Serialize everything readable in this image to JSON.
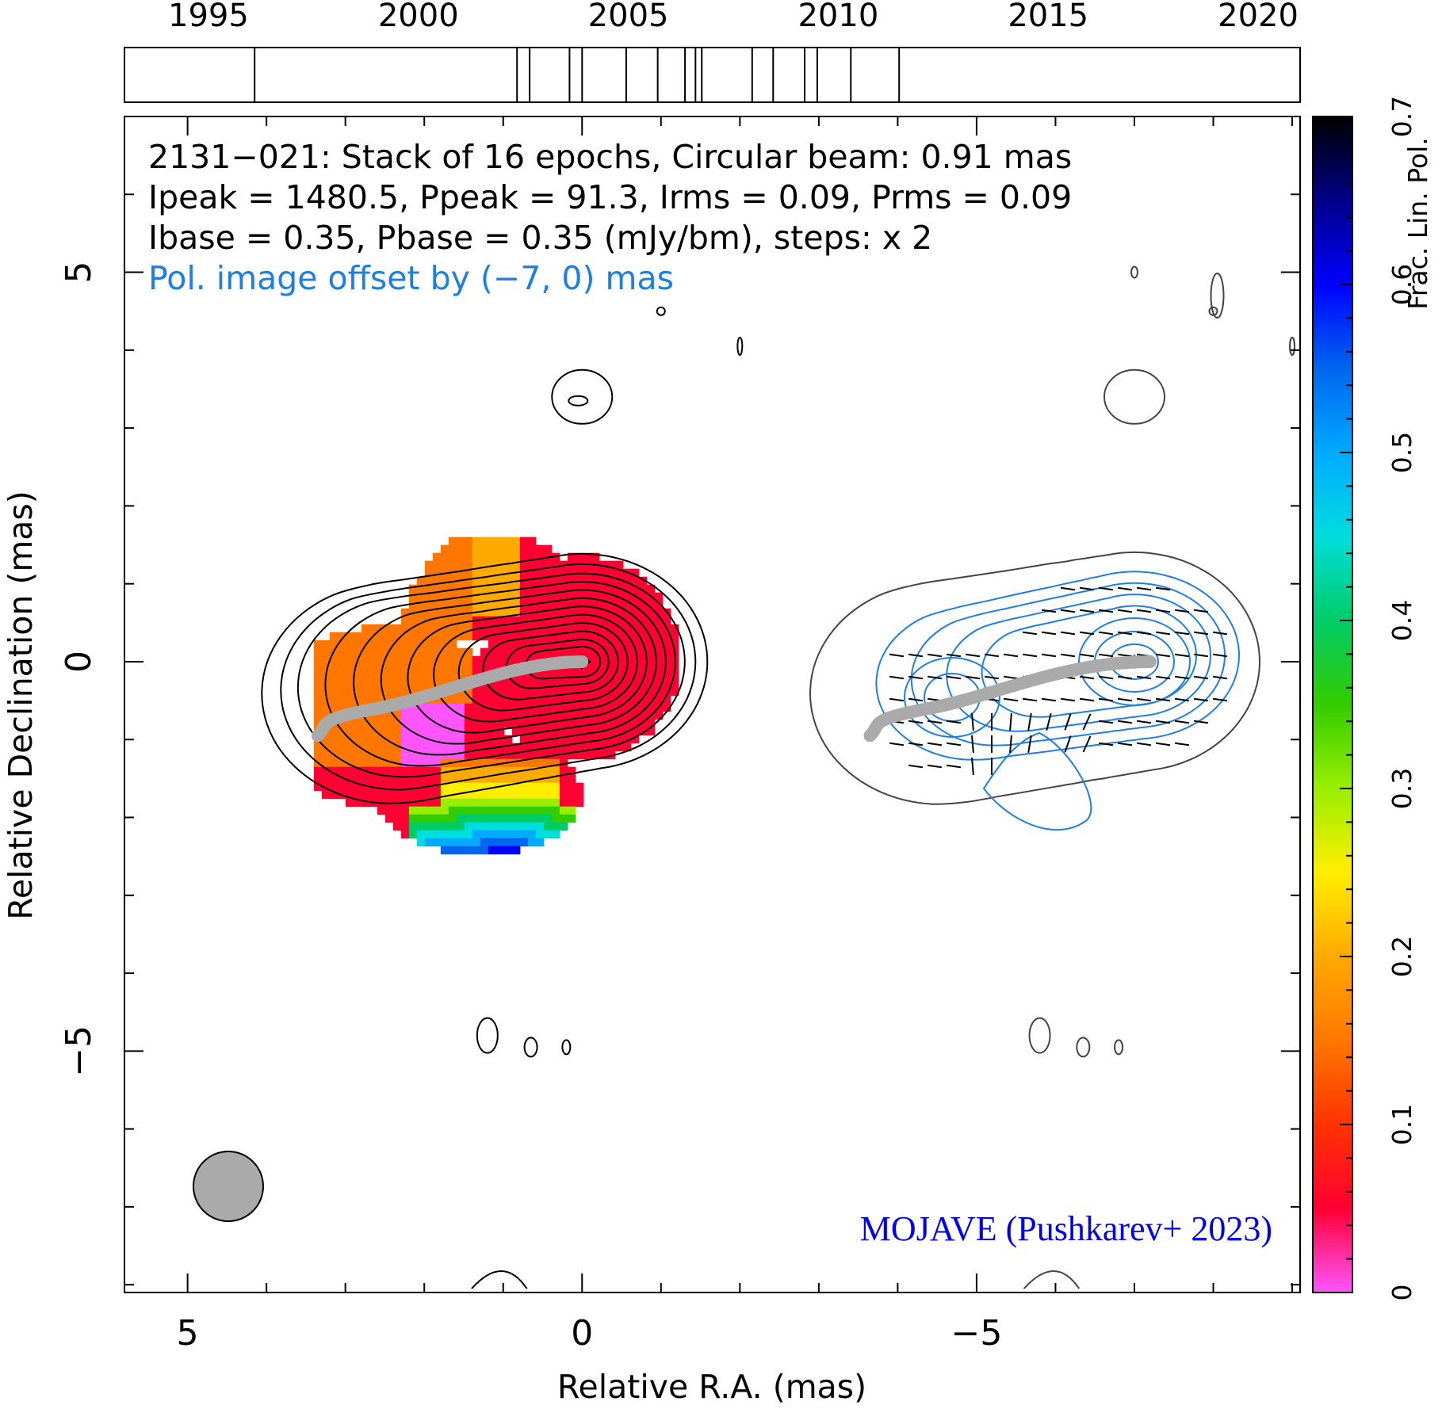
{
  "chart_data": {
    "type": "contour",
    "source_name": "2131−021",
    "header_lines": [
      "2131−021: Stack of 16 epochs, Circular beam: 0.91 mas",
      "Ipeak = 1480.5, Ppeak = 91.3, Irms = 0.09, Prms = 0.09",
      "Ibase = 0.35, Pbase = 0.35 (mJy/bm), steps: x 2"
    ],
    "offset_note": "Pol. image offset by (−7, 0) mas",
    "credit": "MOJAVE (Pushkarev+ 2023)",
    "xlabel": "Relative R.A. (mas)",
    "ylabel": "Relative Declination (mas)",
    "colorbar_label": "Frac. Lin. Pol.",
    "xlim": [
      5.8,
      -9.1
    ],
    "ylim": [
      -8.1,
      7.0
    ],
    "x_ticks": [
      5,
      0,
      -5
    ],
    "x_tick_labels": [
      "5",
      "0",
      "−5"
    ],
    "y_ticks": [
      5,
      0,
      -5
    ],
    "y_tick_labels": [
      "5",
      "0",
      "−5"
    ],
    "colorbar_range": [
      0,
      0.7
    ],
    "colorbar_ticks": [
      0,
      0.1,
      0.2,
      0.3,
      0.4,
      0.5,
      0.6,
      0.7
    ],
    "colorbar_tick_labels": [
      "0",
      "0.1",
      "0.2",
      "0.3",
      "0.4",
      "0.5",
      "0.6",
      "0.7"
    ],
    "timeline": {
      "range": [
        1993.0,
        2021.0
      ],
      "tick_labels": [
        "1995",
        "2000",
        "2005",
        "2010",
        "2015",
        "2020"
      ],
      "tick_years": [
        1995,
        2000,
        2005,
        2010,
        2015,
        2020
      ],
      "epochs": [
        1996.1,
        2002.35,
        2002.65,
        2003.6,
        2003.9,
        2004.95,
        2005.7,
        2006.35,
        2006.6,
        2006.75,
        2007.95,
        2008.45,
        2009.2,
        2009.5,
        2010.3,
        2011.45
      ]
    },
    "beam_diameter_mas": 0.91,
    "colors": {
      "total_intensity_contours": "#000000",
      "pol_contours": "#1f7fe0",
      "ridge_line": "#aaaaaa",
      "offset_note": "#1f7fe0",
      "credit": "#0000ee"
    },
    "colormap": [
      "#ff55ff",
      "#ff0033",
      "#ff3300",
      "#ff7700",
      "#ffaa00",
      "#ffee00",
      "#99ee00",
      "#33cc00",
      "#00cc66",
      "#00dddd",
      "#00aaff",
      "#0066ee",
      "#0000ff",
      "#000088",
      "#000000"
    ]
  }
}
